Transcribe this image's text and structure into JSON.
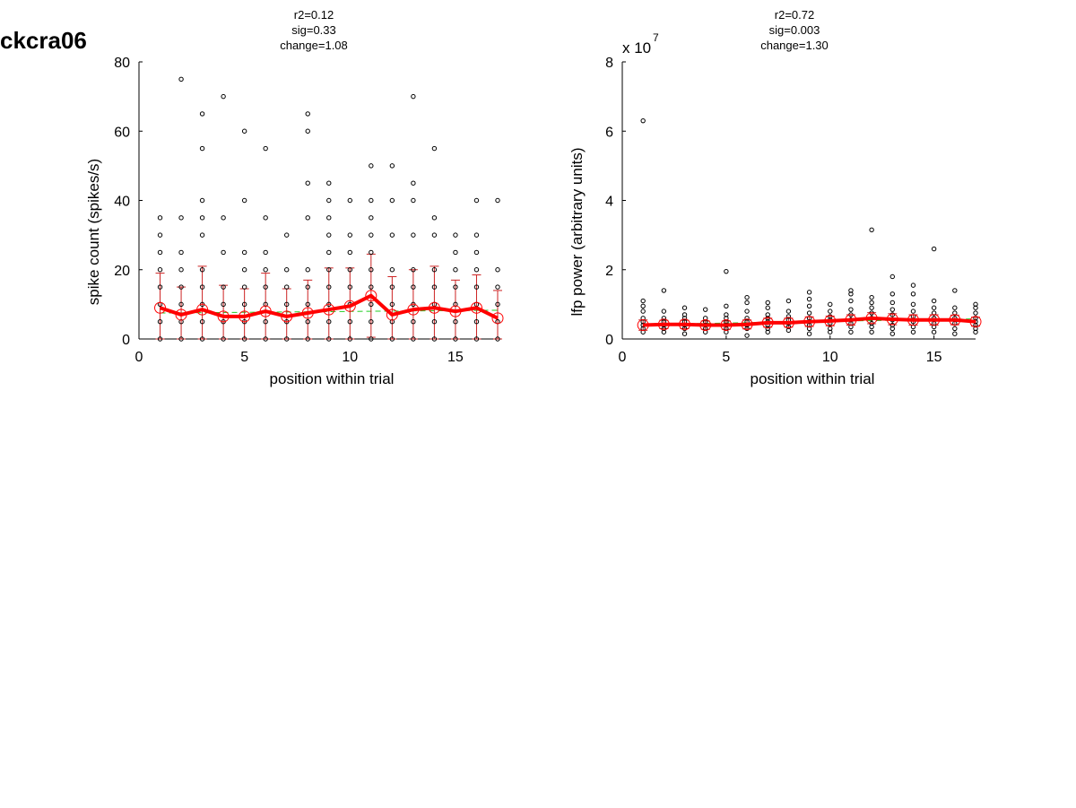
{
  "figure_label": "ckcra06",
  "colors": {
    "points": "#000000",
    "mean_line": "#ff0000",
    "error_bars": "#cc2222",
    "trend": "#22cc22",
    "axes": "#000000"
  },
  "chart_data": [
    {
      "type": "scatter",
      "title_lines": [
        "r2=0.12",
        "sig=0.33",
        "change=1.08"
      ],
      "xlabel": "position within trial",
      "ylabel": "spike count (spikes/s)",
      "xlim": [
        0,
        17
      ],
      "ylim": [
        0,
        80
      ],
      "xticks": [
        0,
        5,
        10,
        15
      ],
      "yticks": [
        0,
        20,
        40,
        60,
        80
      ],
      "multiplier": "",
      "points": [
        [
          0,
          5,
          10,
          15,
          20,
          25,
          30,
          35
        ],
        [
          0,
          5,
          10,
          15,
          20,
          25,
          35,
          75
        ],
        [
          0,
          5,
          10,
          15,
          20,
          30,
          35,
          40,
          55,
          65
        ],
        [
          0,
          5,
          10,
          15,
          25,
          35,
          70
        ],
        [
          0,
          5,
          10,
          15,
          20,
          25,
          40,
          60
        ],
        [
          0,
          5,
          10,
          15,
          20,
          25,
          35,
          55
        ],
        [
          0,
          5,
          10,
          15,
          20,
          30
        ],
        [
          0,
          5,
          10,
          15,
          20,
          35,
          45,
          60,
          65
        ],
        [
          0,
          5,
          10,
          15,
          20,
          25,
          30,
          35,
          40,
          45
        ],
        [
          0,
          5,
          10,
          15,
          20,
          25,
          30,
          40
        ],
        [
          0,
          5,
          10,
          15,
          20,
          25,
          30,
          35,
          40,
          50
        ],
        [
          0,
          5,
          10,
          15,
          20,
          30,
          40,
          50
        ],
        [
          0,
          5,
          10,
          15,
          20,
          30,
          40,
          45,
          70
        ],
        [
          0,
          5,
          10,
          15,
          20,
          30,
          35,
          55
        ],
        [
          0,
          5,
          10,
          15,
          20,
          25,
          30
        ],
        [
          0,
          5,
          10,
          15,
          20,
          25,
          30,
          40
        ],
        [
          0,
          5,
          10,
          15,
          20,
          40
        ]
      ],
      "mean": [
        9,
        7,
        8.5,
        6.5,
        6.5,
        8,
        6.5,
        7.5,
        8.5,
        9.5,
        12.5,
        7,
        8.5,
        9,
        8,
        9,
        6
      ],
      "error": [
        10,
        8,
        12.5,
        9,
        8,
        11,
        8,
        9.5,
        12,
        11,
        12,
        11,
        11.5,
        12,
        9,
        9.5,
        8
      ],
      "trend": [
        7.5,
        8.3
      ]
    },
    {
      "type": "scatter",
      "title_lines": [
        "r2=0.72",
        "sig=0.003",
        "change=1.30"
      ],
      "xlabel": "position within trial",
      "ylabel": "lfp power (arbitrary units)",
      "xlim": [
        0,
        17
      ],
      "ylim": [
        0,
        8
      ],
      "xticks": [
        0,
        5,
        10,
        15
      ],
      "yticks": [
        0,
        2,
        4,
        6,
        8
      ],
      "multiplier": "x 10",
      "multiplier_exp": "7",
      "points": [
        [
          0.2,
          0.3,
          0.4,
          0.5,
          0.6,
          0.8,
          0.95,
          1.1,
          6.3
        ],
        [
          0.2,
          0.3,
          0.4,
          0.5,
          0.6,
          0.8,
          1.4
        ],
        [
          0.15,
          0.3,
          0.4,
          0.5,
          0.6,
          0.7,
          0.9
        ],
        [
          0.2,
          0.3,
          0.4,
          0.5,
          0.6,
          0.85
        ],
        [
          0.2,
          0.3,
          0.4,
          0.5,
          0.6,
          0.7,
          0.95,
          1.95
        ],
        [
          0.1,
          0.3,
          0.4,
          0.5,
          0.6,
          0.8,
          1.05,
          1.2
        ],
        [
          0.2,
          0.3,
          0.4,
          0.5,
          0.6,
          0.7,
          0.9,
          1.05
        ],
        [
          0.25,
          0.35,
          0.45,
          0.55,
          0.65,
          0.8,
          1.1
        ],
        [
          0.15,
          0.3,
          0.4,
          0.5,
          0.6,
          0.75,
          0.95,
          1.15,
          1.35
        ],
        [
          0.2,
          0.3,
          0.45,
          0.55,
          0.65,
          0.8,
          1.0
        ],
        [
          0.2,
          0.35,
          0.45,
          0.55,
          0.7,
          0.85,
          1.1,
          1.3,
          1.4
        ],
        [
          0.2,
          0.35,
          0.45,
          0.6,
          0.75,
          0.9,
          1.05,
          1.2,
          3.15
        ],
        [
          0.15,
          0.3,
          0.4,
          0.55,
          0.7,
          0.85,
          1.05,
          1.3,
          1.8
        ],
        [
          0.2,
          0.35,
          0.5,
          0.65,
          0.8,
          1.0,
          1.3,
          1.55
        ],
        [
          0.2,
          0.35,
          0.45,
          0.6,
          0.75,
          0.9,
          1.1,
          2.6
        ],
        [
          0.15,
          0.3,
          0.45,
          0.6,
          0.75,
          0.9,
          1.4
        ],
        [
          0.2,
          0.3,
          0.4,
          0.5,
          0.6,
          0.75,
          0.9,
          1.0
        ]
      ],
      "mean": [
        0.4,
        0.42,
        0.42,
        0.4,
        0.4,
        0.42,
        0.47,
        0.47,
        0.5,
        0.52,
        0.55,
        0.6,
        0.57,
        0.55,
        0.55,
        0.55,
        0.5
      ],
      "error": [
        0.15,
        0.12,
        0.12,
        0.12,
        0.12,
        0.13,
        0.13,
        0.13,
        0.14,
        0.14,
        0.15,
        0.16,
        0.16,
        0.15,
        0.15,
        0.14,
        0.13
      ],
      "trend": [
        0.42,
        0.58
      ]
    }
  ]
}
